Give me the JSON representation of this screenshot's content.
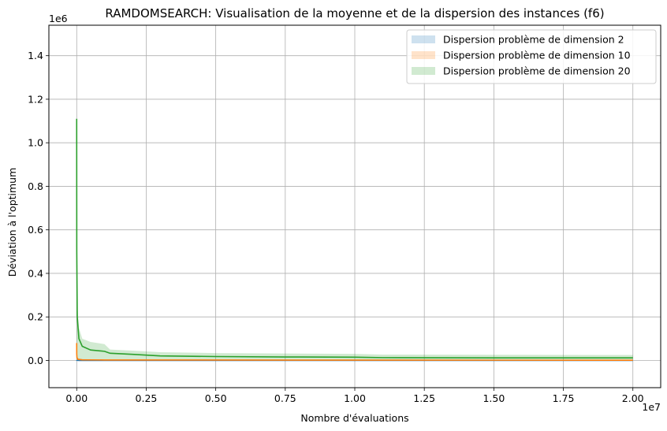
{
  "chart_data": {
    "type": "line",
    "title": "RAMDOMSEARCH: Visualisation de la moyenne et de la dispersion des instances (f6)",
    "xlabel": "Nombre d'évaluations",
    "ylabel": "Déviation à l'optimum",
    "x_scale_label": "1e7",
    "y_scale_label": "1e6",
    "xlim": [
      -0.1,
      2.1
    ],
    "ylim": [
      -0.125,
      1.54
    ],
    "xticks": [
      0.0,
      0.25,
      0.5,
      0.75,
      1.0,
      1.25,
      1.5,
      1.75,
      2.0
    ],
    "xtick_labels": [
      "0.00",
      "0.25",
      "0.50",
      "0.75",
      "1.00",
      "1.25",
      "1.50",
      "1.75",
      "2.00"
    ],
    "yticks": [
      0.0,
      0.2,
      0.4,
      0.6,
      0.8,
      1.0,
      1.2,
      1.4
    ],
    "ytick_labels": [
      "0.0",
      "0.2",
      "0.4",
      "0.6",
      "0.8",
      "1.0",
      "1.2",
      "1.4"
    ],
    "grid": true,
    "legend_position": "top-right",
    "series": [
      {
        "name": "Dispersion problème de dimension 2",
        "color": "#1f77b4",
        "x": [
          0.0,
          0.0002,
          0.001,
          0.01,
          2.0
        ],
        "mean": [
          0.002,
          0.001,
          0.0005,
          0.0001,
          0.0001
        ],
        "lower": [
          0.0,
          0.0,
          0.0,
          0.0,
          0.0
        ],
        "upper": [
          0.004,
          0.002,
          0.001,
          0.0003,
          0.0002
        ]
      },
      {
        "name": "Dispersion problème de dimension 10",
        "color": "#ff7f0e",
        "x": [
          0.0,
          0.0002,
          0.001,
          0.005,
          0.02,
          0.1,
          2.0
        ],
        "mean": [
          0.08,
          0.03,
          0.012,
          0.005,
          0.003,
          0.002,
          0.001
        ],
        "lower": [
          0.0,
          0.0,
          0.0,
          0.0,
          0.0,
          0.0,
          0.0
        ],
        "upper": [
          0.09,
          0.05,
          0.02,
          0.01,
          0.006,
          0.004,
          0.002
        ]
      },
      {
        "name": "Dispersion problème de dimension 20",
        "color": "#2ca02c",
        "x": [
          0.0,
          0.0003,
          0.002,
          0.008,
          0.02,
          0.05,
          0.1,
          0.12,
          0.2,
          0.3,
          0.5,
          0.75,
          1.0,
          1.1,
          1.5,
          2.0
        ],
        "mean": [
          1.11,
          0.5,
          0.2,
          0.1,
          0.065,
          0.048,
          0.042,
          0.033,
          0.028,
          0.021,
          0.018,
          0.016,
          0.015,
          0.013,
          0.012,
          0.012
        ],
        "lower": [
          0.0,
          0.0,
          0.0,
          0.0,
          0.0,
          0.0,
          0.0,
          0.0,
          0.0,
          0.0,
          0.0,
          0.0,
          0.0,
          0.0,
          0.0,
          0.0
        ],
        "upper": [
          1.11,
          0.6,
          0.26,
          0.15,
          0.1,
          0.085,
          0.075,
          0.05,
          0.045,
          0.038,
          0.034,
          0.032,
          0.03,
          0.027,
          0.026,
          0.025
        ]
      }
    ]
  }
}
